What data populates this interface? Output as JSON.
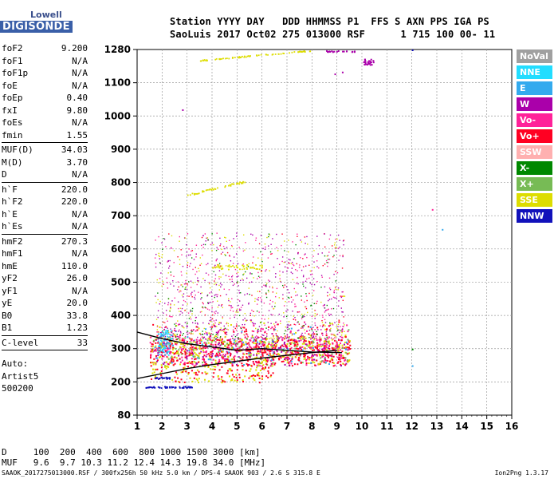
{
  "logo": {
    "brand": "Lowell",
    "name": "DIGISONDE"
  },
  "header": {
    "line1": "Station YYYY DAY   DDD HHMMSS P1  FFS S AXN PPS IGA PS",
    "line2": "SaoLuis 2017 Oct02 275 013000 RSF      1 715 100 00- 11"
  },
  "params": [
    [
      [
        "foF2",
        "9.200"
      ],
      [
        "foF1",
        "N/A"
      ],
      [
        "foF1p",
        "N/A"
      ],
      [
        "foE",
        "N/A"
      ],
      [
        "foEp",
        "0.40"
      ],
      [
        "fxI",
        "9.80"
      ],
      [
        "foEs",
        "N/A"
      ],
      [
        "fmin",
        "1.55"
      ]
    ],
    [
      [
        "MUF(D)",
        "34.03"
      ],
      [
        "M(D)",
        "3.70"
      ],
      [
        "D",
        "N/A"
      ]
    ],
    [
      [
        "h`F",
        "220.0"
      ],
      [
        "h`F2",
        "220.0"
      ],
      [
        "h`E",
        "N/A"
      ],
      [
        "h`Es",
        "N/A"
      ]
    ],
    [
      [
        "hmF2",
        "270.3"
      ],
      [
        "hmF1",
        "N/A"
      ],
      [
        "hmE",
        "110.0"
      ],
      [
        "yF2",
        "26.0"
      ],
      [
        "yF1",
        "N/A"
      ],
      [
        "yE",
        "20.0"
      ],
      [
        "B0",
        "33.8"
      ],
      [
        "B1",
        "1.23"
      ]
    ],
    [
      [
        "C-level",
        "33"
      ]
    ]
  ],
  "artist": [
    "Auto:",
    "Artist5",
    "500200"
  ],
  "legend": [
    {
      "label": "NoVal",
      "color": "#a0a0a0"
    },
    {
      "label": "NNE",
      "color": "#22ddff"
    },
    {
      "label": "E",
      "color": "#33aaee"
    },
    {
      "label": "W",
      "color": "#aa00aa"
    },
    {
      "label": "Vo-",
      "color": "#ff2299"
    },
    {
      "label": "Vo+",
      "color": "#ff0022"
    },
    {
      "label": "SSW",
      "color": "#ffb0b0"
    },
    {
      "label": "X-",
      "color": "#008800"
    },
    {
      "label": "X+",
      "color": "#77bb55"
    },
    {
      "label": "SSE",
      "color": "#dddd00"
    },
    {
      "label": "NNW",
      "color": "#1111bb"
    }
  ],
  "muf_table": {
    "d_line": "D     100  200  400  600  800 1000 1500 3000 [km]",
    "muf_line": "MUF   9.6  9.7 10.3 11.2 12.4 14.3 19.8 34.0 [MHz]"
  },
  "footer": {
    "left": "SAAOK_2017275013000.RSF / 300fx256h 50 kHz 5.0 km / DPS-4 SAAOK 903 / 2.6 S 315.8 E",
    "right": "Ion2Png 1.3.17"
  },
  "chart_data": {
    "type": "scatter",
    "x_ticks": [
      1,
      2,
      3,
      4,
      5,
      6,
      7,
      8,
      9,
      10,
      11,
      12,
      13,
      14,
      15,
      16
    ],
    "y_ticks": [
      80,
      200,
      300,
      400,
      500,
      600,
      700,
      800,
      900,
      1000,
      1100,
      1280
    ],
    "xlim": [
      1,
      16
    ],
    "ylim_labels": [
      80,
      1280
    ],
    "grid": true,
    "profile_curve": [
      [
        1.0,
        210
      ],
      [
        2.0,
        225
      ],
      [
        3.0,
        240
      ],
      [
        4.0,
        252
      ],
      [
        5.0,
        262
      ],
      [
        6.0,
        272
      ],
      [
        7.0,
        280
      ],
      [
        8.0,
        288
      ],
      [
        9.0,
        295
      ]
    ],
    "trace_curve": [
      [
        1.0,
        350
      ],
      [
        2.0,
        330
      ],
      [
        3.0,
        315
      ],
      [
        4.0,
        305
      ],
      [
        5.0,
        295
      ],
      [
        6.0,
        300
      ],
      [
        7.0,
        295
      ],
      [
        8.0,
        290
      ],
      [
        9.2,
        288
      ]
    ]
  }
}
